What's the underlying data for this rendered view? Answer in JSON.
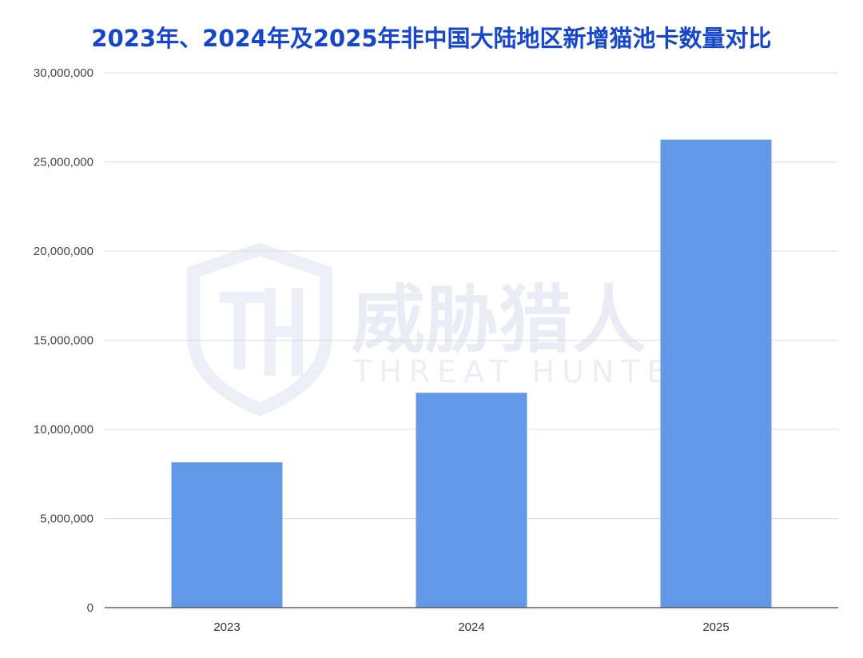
{
  "chart_data": {
    "type": "bar",
    "title": "2023年、2024年及2025年非中国大陆地区新增猫池卡数量对比",
    "categories": [
      "2023",
      "2024",
      "2025"
    ],
    "values": [
      8150000,
      12050000,
      26250000
    ],
    "ylim": [
      0,
      30000000
    ],
    "yticks": [
      "0",
      "5,000,000",
      "10,000,000",
      "15,000,000",
      "20,000,000",
      "25,000,000",
      "30,000,000"
    ],
    "ytick_values": [
      0,
      5000000,
      10000000,
      15000000,
      20000000,
      25000000,
      30000000
    ],
    "grid": true,
    "legend": "none",
    "colors": {
      "bar": "#6398e8",
      "title": "#1646c9",
      "grid": "#dcdcdc",
      "axis": "#444444"
    }
  },
  "watermark": {
    "cn": "威胁猎人",
    "en": "THREAT HUNTER"
  }
}
